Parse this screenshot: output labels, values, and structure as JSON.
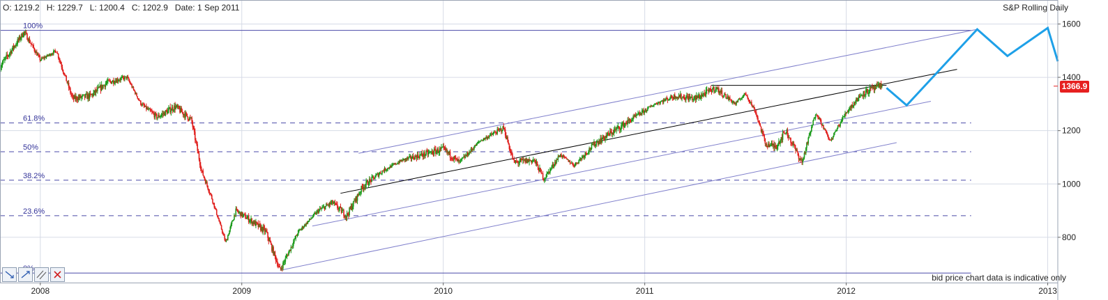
{
  "header": {
    "open": "O: 1219.2",
    "high": "H: 1229.7",
    "low": "L: 1200.4",
    "close": "C: 1202.9",
    "date": "Date: 1 Sep 2011",
    "title": "S&P Rolling Daily"
  },
  "disclaimer": "bid price chart data is indicative only",
  "last_price_label": "1366.9",
  "toolbar": {
    "tools": [
      {
        "name": "trend-down-tool-icon"
      },
      {
        "name": "trend-up-tool-icon"
      },
      {
        "name": "parallel-lines-tool-icon"
      },
      {
        "name": "delete-drawing-icon"
      }
    ]
  },
  "colors": {
    "up_candle": "#1a9a1a",
    "down_candle": "#e0201e",
    "fib_line": "#4a4aa8",
    "channel_line": "#8080cc",
    "trend_line": "#000000",
    "projection": "#1ea0e8",
    "grid": "#d6dbe6",
    "price_tag": "#e62020"
  },
  "chart_data": {
    "type": "candlestick",
    "title": "S&P Rolling Daily",
    "x_axis": {
      "labels": [
        "2008",
        "2009",
        "2010",
        "2011",
        "2012",
        "2013"
      ],
      "range": [
        2007.8,
        2013.05
      ]
    },
    "y_axis": {
      "ticks": [
        800,
        1000,
        1200,
        1400,
        1600
      ],
      "range": [
        630,
        1690
      ],
      "position": "right"
    },
    "grid": true,
    "last_price": 1366.9,
    "fibonacci": [
      {
        "label": "100%",
        "value": 1576
      },
      {
        "label": "61.8%",
        "value": 1229
      },
      {
        "label": "50%",
        "value": 1121
      },
      {
        "label": "38.2%",
        "value": 1014
      },
      {
        "label": "23.6%",
        "value": 881
      },
      {
        "label": "0%",
        "value": 666
      }
    ],
    "price_path": [
      [
        2007.8,
        1440
      ],
      [
        2007.92,
        1570
      ],
      [
        2008.0,
        1465
      ],
      [
        2008.08,
        1500
      ],
      [
        2008.16,
        1320
      ],
      [
        2008.25,
        1330
      ],
      [
        2008.33,
        1380
      ],
      [
        2008.43,
        1400
      ],
      [
        2008.5,
        1300
      ],
      [
        2008.58,
        1250
      ],
      [
        2008.67,
        1290
      ],
      [
        2008.75,
        1240
      ],
      [
        2008.8,
        1050
      ],
      [
        2008.85,
        950
      ],
      [
        2008.92,
        780
      ],
      [
        2008.97,
        900
      ],
      [
        2009.05,
        860
      ],
      [
        2009.12,
        820
      ],
      [
        2009.19,
        676
      ],
      [
        2009.28,
        820
      ],
      [
        2009.38,
        900
      ],
      [
        2009.45,
        930
      ],
      [
        2009.52,
        880
      ],
      [
        2009.6,
        990
      ],
      [
        2009.7,
        1050
      ],
      [
        2009.8,
        1090
      ],
      [
        2009.9,
        1110
      ],
      [
        2010.0,
        1130
      ],
      [
        2010.08,
        1080
      ],
      [
        2010.18,
        1160
      ],
      [
        2010.3,
        1210
      ],
      [
        2010.35,
        1080
      ],
      [
        2010.45,
        1090
      ],
      [
        2010.5,
        1020
      ],
      [
        2010.58,
        1110
      ],
      [
        2010.65,
        1070
      ],
      [
        2010.75,
        1150
      ],
      [
        2010.85,
        1200
      ],
      [
        2010.95,
        1250
      ],
      [
        2011.05,
        1300
      ],
      [
        2011.15,
        1330
      ],
      [
        2011.25,
        1320
      ],
      [
        2011.35,
        1360
      ],
      [
        2011.45,
        1300
      ],
      [
        2011.5,
        1340
      ],
      [
        2011.55,
        1270
      ],
      [
        2011.6,
        1150
      ],
      [
        2011.65,
        1140
      ],
      [
        2011.7,
        1200
      ],
      [
        2011.78,
        1080
      ],
      [
        2011.85,
        1270
      ],
      [
        2011.92,
        1160
      ],
      [
        2012.0,
        1270
      ],
      [
        2012.08,
        1340
      ],
      [
        2012.18,
        1370
      ]
    ],
    "projection": [
      [
        2012.2,
        1360
      ],
      [
        2012.3,
        1295
      ],
      [
        2012.65,
        1580
      ],
      [
        2012.8,
        1480
      ],
      [
        2013.0,
        1585
      ],
      [
        2013.05,
        1460
      ]
    ],
    "trend_lines": [
      {
        "name": "channel-top",
        "points": [
          [
            2009.58,
            1115
          ],
          [
            2012.65,
            1580
          ]
        ]
      },
      {
        "name": "channel-mid",
        "points": [
          [
            2009.35,
            842
          ],
          [
            2012.42,
            1310
          ]
        ]
      },
      {
        "name": "channel-bottom",
        "points": [
          [
            2009.19,
            676
          ],
          [
            2012.25,
            1155
          ]
        ]
      },
      {
        "name": "trend-support",
        "points": [
          [
            2009.49,
            965
          ],
          [
            2012.55,
            1430
          ]
        ]
      },
      {
        "name": "horizontal-resistance",
        "points": [
          [
            2011.33,
            1370
          ],
          [
            2012.2,
            1370
          ]
        ]
      }
    ]
  }
}
